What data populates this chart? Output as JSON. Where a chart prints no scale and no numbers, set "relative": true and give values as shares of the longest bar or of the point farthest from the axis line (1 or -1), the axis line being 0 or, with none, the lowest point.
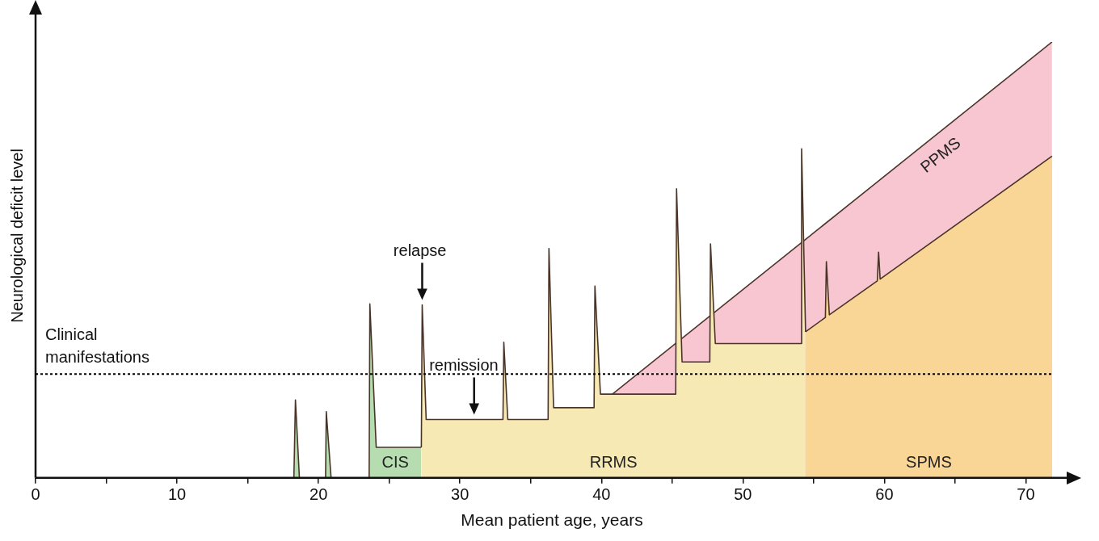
{
  "chart_data": {
    "type": "area",
    "relative": true,
    "xlabel": "Mean patient age, years",
    "ylabel": "Neurological deficit level",
    "xlim": [
      0,
      73
    ],
    "xticks": [
      0,
      {
        "value": 5,
        "label": null
      },
      10,
      {
        "value": 15,
        "label": null
      },
      20,
      {
        "value": 25,
        "label": null
      },
      30,
      {
        "value": 35,
        "label": null
      },
      40,
      {
        "value": 45,
        "label": null
      },
      50,
      {
        "value": 55,
        "label": null
      },
      60,
      {
        "value": 65,
        "label": null
      },
      70
    ],
    "grid": false,
    "legend": false,
    "series": [
      {
        "name": "PPMS",
        "color": "#f7c6d1",
        "x": [
          40.77,
          71.85
        ],
        "values": [
          0.192,
          1
        ]
      },
      {
        "name": "CIS",
        "color": "#b5ddb0",
        "x": [
          18.26,
          18.37,
          18.65,
          20.5,
          20.55,
          20.89,
          23.58,
          23.63,
          24.08,
          27.27
        ],
        "values": [
          0,
          0.179,
          0,
          0,
          0.152,
          0,
          0,
          0.399,
          0.07,
          0.07
        ]
      },
      {
        "name": "RRMS",
        "color": "#f7e9b3",
        "x": [
          27.27,
          27.33,
          27.61,
          33.04,
          33.1,
          33.38,
          36.23,
          36.29,
          36.62,
          39.48,
          39.54,
          39.93,
          45.25,
          45.31,
          45.7,
          47.66,
          47.71,
          48.05,
          54.1,
          54.15,
          54.43
        ],
        "values": [
          0.07,
          0.397,
          0.134,
          0.134,
          0.311,
          0.134,
          0.134,
          0.526,
          0.161,
          0.161,
          0.44,
          0.192,
          0.192,
          0.663,
          0.266,
          0.266,
          0.537,
          0.308,
          0.308,
          0.755,
          0.335
        ]
      },
      {
        "name": "SPMS",
        "color": "#f9d596",
        "x": [
          54.43,
          55.83,
          55.9,
          56.11,
          59.5,
          59.59,
          59.7,
          71.85
        ],
        "values": [
          0.335,
          0.368,
          0.496,
          0.374,
          0.452,
          0.518,
          0.456,
          0.738
        ]
      }
    ],
    "ref_lines": [
      {
        "axis": "y",
        "value": 0.238,
        "label": "Clinical manifestations",
        "line_style": "dotted",
        "color": "#000000"
      }
    ],
    "annotations": [
      {
        "text": "relapse",
        "x": 27.33,
        "y": 0.397
      },
      {
        "text": "remission",
        "x": 31,
        "y": 0.134
      }
    ]
  }
}
